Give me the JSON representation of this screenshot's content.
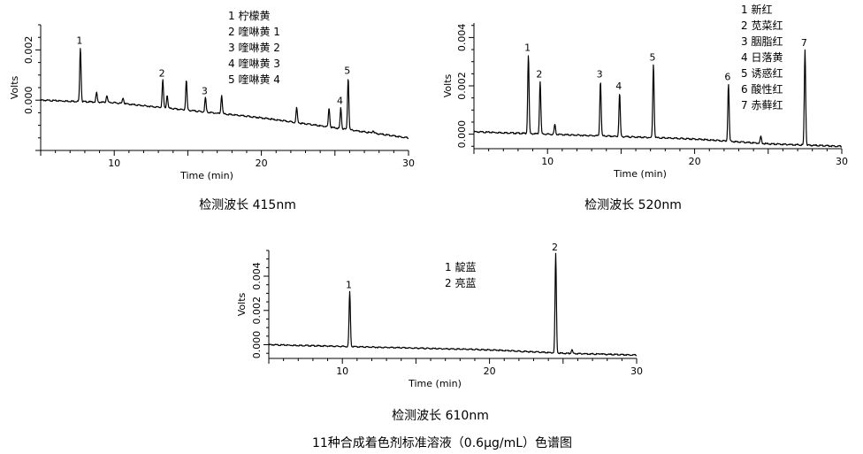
{
  "figure": {
    "title": "11种合成着色剂标准溶液（0.6μg/mL）色谱图"
  },
  "chart_data": [
    {
      "type": "line",
      "caption": "检测波长 415nm",
      "xlabel": "Time (min)",
      "ylabel": "Volts",
      "xlim": [
        5,
        30
      ],
      "ylim": [
        -0.002,
        0.003
      ],
      "xticks": [
        10,
        20,
        30
      ],
      "xtick_labels": [
        "10",
        "20",
        "30"
      ],
      "yticks": [
        0.0,
        0.002
      ],
      "ytick_labels": [
        "0.000",
        "0.002"
      ],
      "baseline": [
        [
          5,
          0.0
        ],
        [
          10,
          -0.0001
        ],
        [
          15,
          -0.0004
        ],
        [
          20,
          -0.0007
        ],
        [
          25,
          -0.0011
        ],
        [
          30,
          -0.0015
        ]
      ],
      "peaks": [
        {
          "label": "1",
          "x": 7.7,
          "y": 0.0021
        },
        {
          "label": "",
          "x": 8.8,
          "y": 0.0003
        },
        {
          "label": "",
          "x": 9.5,
          "y": 0.0002
        },
        {
          "label": "",
          "x": 10.6,
          "y": 0.0001
        },
        {
          "label": "2",
          "x": 13.3,
          "y": 0.0008
        },
        {
          "label": "",
          "x": 13.6,
          "y": 0.0002
        },
        {
          "label": "",
          "x": 14.9,
          "y": 0.0008
        },
        {
          "label": "3",
          "x": 16.2,
          "y": 0.0001
        },
        {
          "label": "",
          "x": 17.3,
          "y": 0.0002
        },
        {
          "label": "",
          "x": 22.4,
          "y": -0.0003
        },
        {
          "label": "",
          "x": 24.6,
          "y": -0.0003
        },
        {
          "label": "4",
          "x": 25.4,
          "y": -0.0003
        },
        {
          "label": "5",
          "x": 25.9,
          "y": 0.0009
        },
        {
          "label": "",
          "x": 27.6,
          "y": -0.0012
        }
      ],
      "legend": [
        "1  柠檬黄",
        "2  喹啉黄 1",
        "3  喹啉黄 2",
        "4  喹啉黄 3",
        "5  喹啉黄 4"
      ]
    },
    {
      "type": "line",
      "caption": "检测波长 520nm",
      "xlabel": "Time (min)",
      "ylabel": "Volts",
      "xlim": [
        5,
        30
      ],
      "ylim": [
        -0.0006,
        0.0046
      ],
      "xticks": [
        10,
        20,
        30
      ],
      "xtick_labels": [
        "10",
        "20",
        "30"
      ],
      "yticks": [
        0.0,
        0.002,
        0.004
      ],
      "ytick_labels": [
        "0.000",
        "0.002",
        "0.004"
      ],
      "baseline": [
        [
          5,
          0.0001
        ],
        [
          10,
          0.0
        ],
        [
          15,
          -0.0001
        ],
        [
          20,
          -0.0002
        ],
        [
          25,
          -0.0004
        ],
        [
          30,
          -0.0005
        ]
      ],
      "peaks": [
        {
          "label": "1",
          "x": 8.7,
          "y": 0.0033
        },
        {
          "label": "2",
          "x": 9.5,
          "y": 0.0022
        },
        {
          "label": "",
          "x": 10.5,
          "y": 0.0004
        },
        {
          "label": "3",
          "x": 13.6,
          "y": 0.0022
        },
        {
          "label": "4",
          "x": 14.9,
          "y": 0.0017
        },
        {
          "label": "5",
          "x": 17.2,
          "y": 0.0029
        },
        {
          "label": "6",
          "x": 22.3,
          "y": 0.0021
        },
        {
          "label": "",
          "x": 24.5,
          "y": -0.0001
        },
        {
          "label": "7",
          "x": 27.5,
          "y": 0.0035
        }
      ],
      "legend": [
        "1  新红",
        "2  苋菜红",
        "3  胭脂红",
        "4  日落黄",
        "5  诱惑红",
        "6  酸性红",
        "7  赤藓红"
      ]
    },
    {
      "type": "line",
      "caption": "检测波长 610nm",
      "xlabel": "Time (min)",
      "ylabel": "Volts",
      "xlim": [
        5,
        30
      ],
      "ylim": [
        -0.0008,
        0.0055
      ],
      "xticks": [
        10,
        20,
        30
      ],
      "xtick_labels": [
        "10",
        "20",
        "30"
      ],
      "yticks": [
        0.0,
        0.002,
        0.004
      ],
      "ytick_labels": [
        "0.000",
        "0.002",
        "0.004"
      ],
      "baseline": [
        [
          5,
          0.0
        ],
        [
          10,
          -0.0001
        ],
        [
          15,
          -0.0002
        ],
        [
          20,
          -0.0003
        ],
        [
          25,
          -0.0005
        ],
        [
          30,
          -0.0006
        ]
      ],
      "peaks": [
        {
          "label": "1",
          "x": 10.5,
          "y": 0.0031
        },
        {
          "label": "2",
          "x": 24.5,
          "y": 0.0053
        },
        {
          "label": "",
          "x": 25.6,
          "y": -0.0003
        },
        {
          "label": "",
          "x": 27.6,
          "y": -0.0005
        }
      ],
      "legend": [
        "1  靛蓝",
        "2  亮蓝"
      ]
    }
  ]
}
